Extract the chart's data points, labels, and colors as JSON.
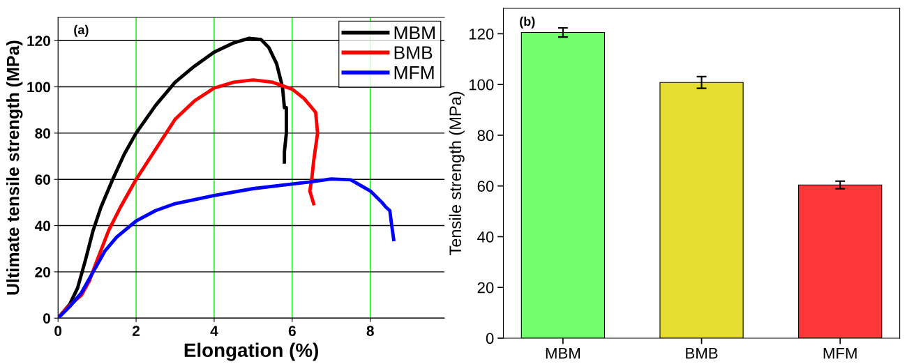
{
  "chart_data": [
    {
      "type": "line",
      "xlabel": "Elongation (%)",
      "ylabel": "Ultimate tensile strength (MPa)",
      "annotations": [
        "(a)"
      ],
      "xlim": [
        0,
        9.9
      ],
      "xticks": [
        0,
        2,
        4,
        6,
        8
      ],
      "ylim": [
        0,
        130
      ],
      "yticks": [
        0,
        20,
        40,
        60,
        80,
        100,
        120
      ],
      "grid": true,
      "legend": "top right",
      "marker": "none",
      "line_style": "solid",
      "series": [
        {
          "name": "MBM",
          "color": "#000000",
          "x": [
            0,
            0.3,
            0.5,
            0.7,
            0.9,
            1.1,
            1.4,
            1.7,
            2,
            2.5,
            3,
            3.5,
            4,
            4.5,
            4.9,
            5.2,
            5.4,
            5.6,
            5.75,
            5.8,
            5.85,
            5.85,
            5.8,
            5.8
          ],
          "values": [
            0,
            6,
            13,
            25,
            38,
            48,
            60,
            71,
            80,
            92,
            102,
            109,
            115,
            119,
            121,
            120.5,
            117,
            110,
            100,
            91,
            91,
            80,
            72,
            67.5
          ]
        },
        {
          "name": "BMB",
          "color": "#ff0000",
          "x": [
            0,
            0.2,
            0.4,
            0.6,
            0.8,
            1,
            1.3,
            1.6,
            2,
            2.5,
            3,
            3.5,
            4,
            4.5,
            5,
            5.5,
            6,
            6.3,
            6.6,
            6.65,
            6.55,
            6.5,
            6.45,
            6.55
          ],
          "values": [
            0,
            4,
            7,
            10,
            16,
            25,
            38,
            48,
            60,
            73,
            86,
            94,
            99.5,
            102,
            103,
            102,
            99,
            95,
            89,
            80,
            68,
            60,
            55,
            49.5
          ]
        },
        {
          "name": "MFM",
          "color": "#0000ff",
          "x": [
            0,
            0.3,
            0.6,
            0.9,
            1.2,
            1.5,
            2,
            2.5,
            3,
            4,
            5,
            6,
            6.5,
            7,
            7.5,
            8,
            8.3,
            8.4,
            8.5,
            8.55,
            8.6
          ],
          "values": [
            0,
            5,
            11,
            20,
            29,
            35,
            42,
            46.5,
            49.5,
            53,
            56,
            58,
            59,
            60.2,
            59.8,
            55,
            50,
            48,
            46.5,
            40,
            34
          ]
        }
      ]
    },
    {
      "type": "bar",
      "ylabel": "Tensile strength (MPa)",
      "annotations": [
        "(b)"
      ],
      "categories": [
        "MBM",
        "BMB",
        "MFM"
      ],
      "ylim": [
        0,
        130
      ],
      "yticks": [
        0,
        20,
        40,
        60,
        80,
        100,
        120
      ],
      "grid": false,
      "values": [
        120.5,
        100.8,
        60.4
      ],
      "errors": [
        1.8,
        2.3,
        1.5
      ],
      "colors": [
        "#72fe6e",
        "#e5de31",
        "#fe3838"
      ]
    }
  ]
}
